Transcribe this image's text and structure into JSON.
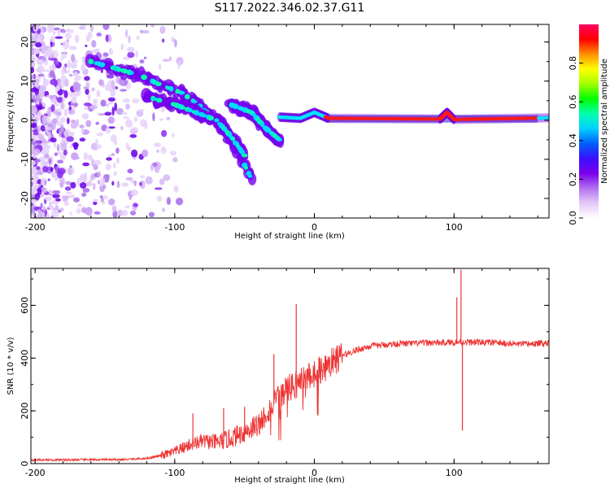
{
  "title": "S117.2022.346.02.37.G11",
  "chart_data": [
    {
      "type": "heatmap",
      "name": "spectrogram",
      "xlabel": "Height of straight line (km)",
      "ylabel": "Frequency (Hz)",
      "xlim": [
        -203,
        168
      ],
      "ylim": [
        -25,
        24.5
      ],
      "xticks": [
        -200,
        -100,
        0,
        100
      ],
      "yticks": [
        -20,
        -10,
        0,
        10,
        20
      ],
      "colorbar": {
        "label": "Normalized spectral amplitude",
        "range": [
          0,
          1
        ],
        "ticks": [
          0.0,
          0.2,
          0.4,
          0.6,
          0.8
        ],
        "tick_labels": [
          "0.0",
          "0.2",
          "0.4",
          "0.6",
          "0.8"
        ],
        "colors": [
          "#ffffff",
          "#e3c8f8",
          "#b070f0",
          "#7a00ee",
          "#3a10ff",
          "#0060ff",
          "#00d0ff",
          "#00ffb0",
          "#00ff00",
          "#a0ff00",
          "#ffff00",
          "#ff9000",
          "#ff0000",
          "#ff0060"
        ]
      },
      "features": [
        {
          "label": "ridge-1",
          "points": [
            [
              -160,
              15
            ],
            [
              -140,
              13
            ],
            [
              -125,
              11.5
            ],
            [
              -110,
              9
            ],
            [
              -95,
              7
            ],
            [
              -85,
              4.5
            ],
            [
              -75,
              1.5
            ],
            [
              -65,
              -2
            ],
            [
              -55,
              -8
            ],
            [
              -45,
              -15
            ]
          ]
        },
        {
          "label": "ridge-2",
          "points": [
            [
              -120,
              6
            ],
            [
              -100,
              4
            ],
            [
              -85,
              2
            ],
            [
              -70,
              0
            ],
            [
              -60,
              -4
            ],
            [
              -50,
              -9
            ]
          ]
        },
        {
          "label": "ridge-3",
          "points": [
            [
              -60,
              4
            ],
            [
              -45,
              2
            ],
            [
              -35,
              -2
            ],
            [
              -25,
              -5
            ]
          ]
        },
        {
          "label": "carrier-line",
          "points": [
            [
              -25,
              0.8
            ],
            [
              -10,
              0.5
            ],
            [
              0,
              2
            ],
            [
              10,
              0.5
            ],
            [
              90,
              0.3
            ],
            [
              95,
              2
            ],
            [
              100,
              0.2
            ],
            [
              168,
              0.6
            ]
          ]
        }
      ]
    },
    {
      "type": "line",
      "name": "snr",
      "xlabel": "Height of straight line (km)",
      "ylabel": "SNR (10 * v/v)",
      "xlim": [
        -203,
        168
      ],
      "ylim": [
        0,
        740
      ],
      "xticks": [
        -200,
        -100,
        0,
        100
      ],
      "yticks": [
        0,
        200,
        400,
        600
      ],
      "color": "#ee3333",
      "series": [
        {
          "name": "snr",
          "x": [
            -203,
            -180,
            -160,
            -140,
            -130,
            -120,
            -110,
            -100,
            -90,
            -80,
            -70,
            -60,
            -50,
            -40,
            -30,
            -20,
            -10,
            0,
            10,
            20,
            30,
            40,
            50,
            60,
            70,
            80,
            90,
            100,
            110,
            120,
            130,
            140,
            150,
            160,
            168
          ],
          "y": [
            14,
            14,
            15,
            15,
            17,
            20,
            30,
            45,
            70,
            85,
            80,
            95,
            120,
            150,
            220,
            280,
            310,
            345,
            375,
            410,
            430,
            445,
            450,
            455,
            455,
            458,
            458,
            460,
            460,
            460,
            458,
            455,
            452,
            455,
            458
          ]
        }
      ],
      "spikes": [
        [
          -13,
          605
        ],
        [
          -16,
          340
        ],
        [
          -29,
          415
        ],
        [
          102,
          630
        ],
        [
          105,
          735
        ],
        [
          106,
          125
        ],
        [
          -87,
          190
        ],
        [
          -65,
          210
        ],
        [
          -50,
          215
        ]
      ]
    }
  ]
}
